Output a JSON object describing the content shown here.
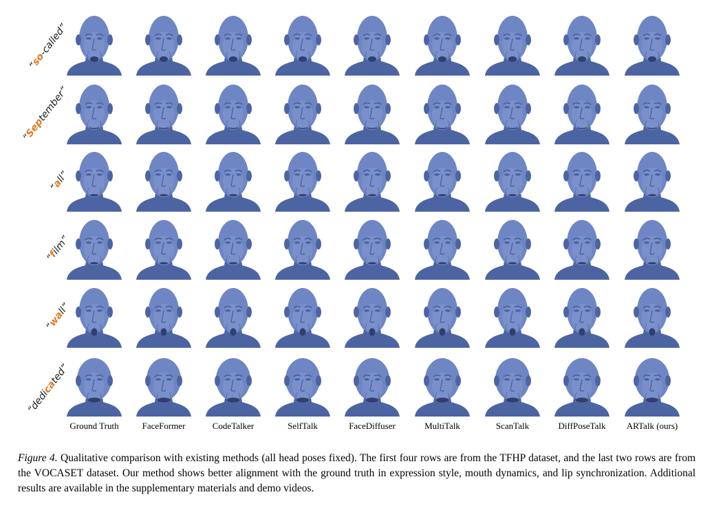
{
  "figure": {
    "rows": [
      {
        "pre": "“",
        "hl": "so",
        "post": "-called”",
        "mouth": "open"
      },
      {
        "pre": "“",
        "hl": "Sep",
        "post": "tember”",
        "mouth": "closed"
      },
      {
        "pre": "“",
        "hl": "a",
        "post": "ll”",
        "mouth": "slight"
      },
      {
        "pre": "“",
        "hl": "f",
        "post": "ilm”",
        "mouth": "slight"
      },
      {
        "pre": "“",
        "hl": "wa",
        "post": "ll”",
        "mouth": "round"
      },
      {
        "pre": "“dedi",
        "hl": "ca",
        "post": "ted”",
        "mouth": "wide"
      }
    ],
    "columns": [
      "Ground Truth",
      "FaceFormer",
      "CodeTalker",
      "SelfTalk",
      "FaceDiffuser",
      "MultiTalk",
      "ScanTalk",
      "DiffPoseTalk",
      "ARTalk (ours)"
    ],
    "colors": {
      "head": "#6f86c4",
      "shadow": "#4d64a2",
      "highlight": "#8ea3d9",
      "accent": "#e07b22"
    }
  },
  "caption": {
    "label": "Figure 4.",
    "text": "Qualitative comparison with existing methods (all head poses fixed). The first four rows are from the TFHP dataset, and the last two rows are from the VOCASET dataset. Our method shows better alignment with the ground truth in expression style, mouth dynamics, and lip synchronization. Additional results are available in the supplementary materials and demo videos."
  }
}
